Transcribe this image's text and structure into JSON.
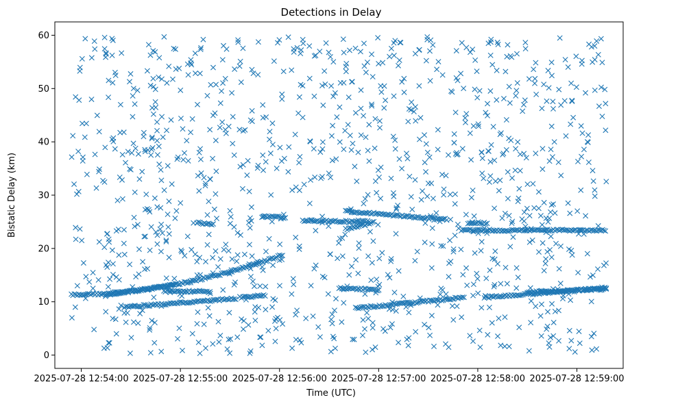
{
  "chart_data": {
    "type": "scatter",
    "title": "Detections in Delay",
    "xlabel": "Time (UTC)",
    "ylabel": "Bistatic Delay (km)",
    "marker": "x",
    "marker_color": "#1f77b4",
    "xlim_seconds_after_12_54": [
      -16,
      328
    ],
    "ylim": [
      -2.5,
      62.5
    ],
    "x_ticks": [
      {
        "value": 0,
        "label": "2025-07-28 12:54:00"
      },
      {
        "value": 60,
        "label": "2025-07-28 12:55:00"
      },
      {
        "value": 120,
        "label": "2025-07-28 12:56:00"
      },
      {
        "value": 180,
        "label": "2025-07-28 12:57:00"
      },
      {
        "value": 240,
        "label": "2025-07-28 12:58:00"
      },
      {
        "value": 300,
        "label": "2025-07-28 12:59:00"
      }
    ],
    "y_ticks": [
      {
        "value": 0,
        "label": "0"
      },
      {
        "value": 10,
        "label": "10"
      },
      {
        "value": 20,
        "label": "20"
      },
      {
        "value": 30,
        "label": "30"
      },
      {
        "value": 40,
        "label": "40"
      },
      {
        "value": 50,
        "label": "50"
      },
      {
        "value": 60,
        "label": "60"
      }
    ],
    "tracks": [
      {
        "t_start": -6,
        "t_end": 122,
        "y_start": 11.3,
        "y_end": 18.8,
        "curve": 1.9
      },
      {
        "t_start": 15,
        "t_end": 58,
        "y_start": 11.3,
        "y_end": 13.2,
        "curve": 1.0
      },
      {
        "t_start": 26,
        "t_end": 94,
        "y_start": 9.0,
        "y_end": 10.6,
        "curve": 1.0
      },
      {
        "t_start": 50,
        "t_end": 78,
        "y_start": 12.0,
        "y_end": 11.9,
        "curve": 1.0
      },
      {
        "t_start": 70,
        "t_end": 80,
        "y_start": 24.8,
        "y_end": 24.6,
        "curve": 1.0
      },
      {
        "t_start": 96,
        "t_end": 112,
        "y_start": 10.8,
        "y_end": 11.2,
        "curve": 1.0
      },
      {
        "t_start": 110,
        "t_end": 124,
        "y_start": 26.0,
        "y_end": 25.8,
        "curve": 1.0
      },
      {
        "t_start": 134,
        "t_end": 172,
        "y_start": 25.2,
        "y_end": 25.0,
        "curve": 1.0
      },
      {
        "t_start": 160,
        "t_end": 222,
        "y_start": 27.0,
        "y_end": 25.4,
        "curve": 1.0
      },
      {
        "t_start": 166,
        "t_end": 232,
        "y_start": 8.8,
        "y_end": 10.8,
        "curve": 1.0
      },
      {
        "t_start": 156,
        "t_end": 180,
        "y_start": 12.6,
        "y_end": 12.2,
        "curve": 1.0
      },
      {
        "t_start": 160,
        "t_end": 178,
        "y_start": 23.6,
        "y_end": 25.0,
        "curve": 1.0
      },
      {
        "t_start": 230,
        "t_end": 318,
        "y_start": 23.4,
        "y_end": 23.4,
        "curve": 1.0
      },
      {
        "t_start": 234,
        "t_end": 246,
        "y_start": 24.8,
        "y_end": 24.8,
        "curve": 1.0
      },
      {
        "t_start": 244,
        "t_end": 318,
        "y_start": 10.8,
        "y_end": 12.6,
        "curve": 1.0
      },
      {
        "t_start": 270,
        "t_end": 318,
        "y_start": 11.8,
        "y_end": 12.4,
        "curve": 1.0
      }
    ]
  }
}
